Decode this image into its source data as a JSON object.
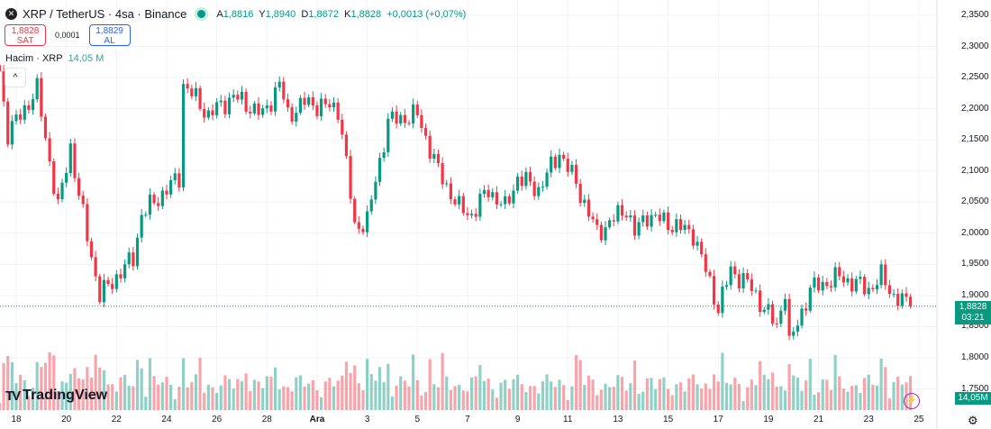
{
  "header": {
    "symbol": "XRP / TetherUS · 4sa · Binance",
    "open_label": "A",
    "open": "1,8816",
    "high_label": "Y",
    "high": "1,8940",
    "low_label": "D",
    "low": "1,8672",
    "close_label": "K",
    "close": "1,8828",
    "change": "+0,0013 (+0,07%)"
  },
  "trade": {
    "sell_price": "1,8828",
    "sell_label": "SAT",
    "spread": "0,0001",
    "buy_price": "1,8829",
    "buy_label": "AL"
  },
  "volume_legend": {
    "label": "Hacim · XRP",
    "value": "14,05 M"
  },
  "brand": "TradingView",
  "icons": {
    "symbol": "xrp-logo-icon",
    "collapse": "chevron-up-icon",
    "alert": "lightning-icon",
    "settings": "gear-icon"
  },
  "colors": {
    "up": "#089981",
    "down": "#f23645",
    "price_tag": "#089981"
  },
  "price_axis": [
    "2,3500",
    "2,3000",
    "2,2500",
    "2,2000",
    "2,1500",
    "2,1000",
    "2,0500",
    "2,0000",
    "1,9500",
    "1,9000",
    "1,8500",
    "1,8000",
    "1,7500"
  ],
  "current_price_tag": {
    "price": "1,8828",
    "countdown": "03:21"
  },
  "volume_tag": "14,05M",
  "time_axis": [
    "18",
    "20",
    "22",
    "24",
    "26",
    "28",
    "Ara",
    "3",
    "5",
    "7",
    "9",
    "11",
    "13",
    "15",
    "17",
    "19",
    "21",
    "23",
    "25"
  ],
  "chart_data": {
    "type": "candlestick",
    "interval": "4sa",
    "ylim": [
      1.75,
      2.35
    ],
    "last_price": 1.8828,
    "price_path": [
      [
        "11-17 08",
        2.26
      ],
      [
        "11-17 16",
        2.16
      ],
      [
        "11-18 20",
        2.23
      ],
      [
        "11-19 16",
        2.04
      ],
      [
        "11-20 04",
        2.14
      ],
      [
        "11-20 12",
        2.06
      ],
      [
        "11-21 08",
        1.9
      ],
      [
        "11-22 16",
        1.96
      ],
      [
        "11-23 00",
        2.03
      ],
      [
        "11-24 12",
        2.09
      ],
      [
        "11-24 16",
        2.24
      ],
      [
        "11-25 16",
        2.19
      ],
      [
        "11-26 16",
        2.22
      ],
      [
        "11-27 20",
        2.19
      ],
      [
        "11-28 12",
        2.24
      ],
      [
        "11-28 20",
        2.19
      ],
      [
        "11-29 12",
        2.21
      ],
      [
        "11-30 20",
        2.2
      ],
      [
        "12-01 00",
        2.16
      ],
      [
        "12-01 12",
        2.01
      ],
      [
        "12-02 00",
        2.02
      ],
      [
        "12-02 20",
        2.18
      ],
      [
        "12-04 00",
        2.19
      ],
      [
        "12-04 20",
        2.1
      ],
      [
        "12-05 16",
        2.04
      ],
      [
        "12-06 04",
        2.03
      ],
      [
        "12-06 20",
        2.07
      ],
      [
        "12-07 12",
        2.04
      ],
      [
        "12-08 00",
        2.09
      ],
      [
        "12-08 20",
        2.07
      ],
      [
        "12-09 16",
        2.13
      ],
      [
        "12-10 08",
        2.08
      ],
      [
        "12-11 04",
        2.0
      ],
      [
        "12-12 08",
        2.04
      ],
      [
        "12-12 16",
        2.0
      ],
      [
        "12-13 04",
        2.03
      ],
      [
        "12-15 00",
        2.0
      ],
      [
        "12-15 12",
        1.94
      ],
      [
        "12-16 00",
        1.88
      ],
      [
        "12-16 12",
        1.94
      ],
      [
        "12-17 04",
        1.92
      ],
      [
        "12-18 08",
        1.85
      ],
      [
        "12-18 16",
        1.91
      ],
      [
        "12-18 20",
        1.82
      ],
      [
        "12-19 16",
        1.91
      ],
      [
        "12-20 20",
        1.93
      ],
      [
        "12-22 00",
        1.91
      ],
      [
        "12-22 12",
        1.93
      ],
      [
        "12-23 00",
        1.9
      ],
      [
        "12-23 16",
        1.8828
      ]
    ]
  }
}
